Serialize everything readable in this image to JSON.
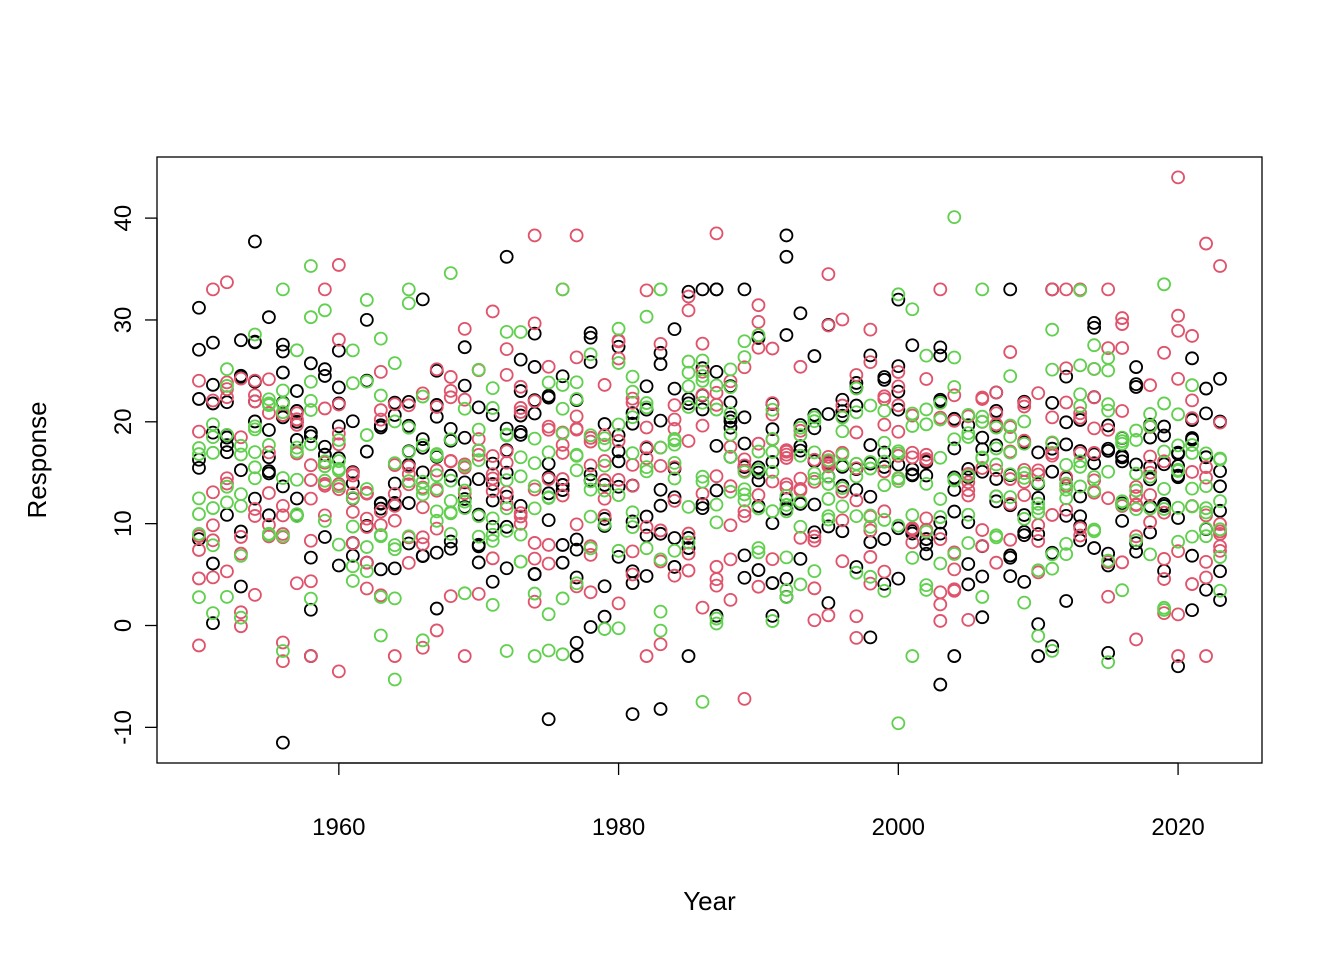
{
  "chart_data": {
    "type": "scatter",
    "title": "",
    "xlabel": "Year",
    "ylabel": "Response",
    "xlim": [
      1947,
      2026
    ],
    "ylim": [
      -13.5,
      46
    ],
    "x_ticks": [
      1960,
      1980,
      2000,
      2020
    ],
    "x_tick_labels": [
      "1960",
      "1980",
      "2000",
      "2020"
    ],
    "y_ticks": [
      -10,
      0,
      10,
      20,
      30,
      40
    ],
    "y_tick_labels": [
      "-10",
      "0",
      "10",
      "20",
      "30",
      "40"
    ],
    "grid": false,
    "legend": "none",
    "marker": "open-circle",
    "x_range": [
      1950,
      2023
    ],
    "points_per_year_per_series": 6,
    "series": [
      {
        "color": "#000000",
        "notable_points": [
          [
            1956,
            -11.5
          ],
          [
            1954,
            37.7
          ],
          [
            1972,
            36.2
          ],
          [
            1992,
            38.3
          ],
          [
            1992,
            36.2
          ],
          [
            1975,
            -9.2
          ],
          [
            2003,
            -5.8
          ],
          [
            1983,
            -8.2
          ],
          [
            1981,
            -8.7
          ],
          [
            2020,
            -4.0
          ],
          [
            2000,
            32.0
          ],
          [
            2023,
            2.5
          ]
        ]
      },
      {
        "color": "#DF536B",
        "notable_points": [
          [
            2020,
            44.0
          ],
          [
            1974,
            38.3
          ],
          [
            1977,
            38.3
          ],
          [
            1987,
            38.5
          ],
          [
            2022,
            37.5
          ],
          [
            2023,
            35.3
          ],
          [
            1960,
            35.4
          ],
          [
            1989,
            -7.2
          ],
          [
            1956,
            -3.5
          ],
          [
            1960,
            -4.5
          ],
          [
            1952,
            33.7
          ],
          [
            1995,
            34.5
          ]
        ]
      },
      {
        "color": "#61D04F",
        "notable_points": [
          [
            2000,
            -9.6
          ],
          [
            2004,
            40.1
          ],
          [
            1986,
            -7.5
          ],
          [
            1964,
            -5.3
          ],
          [
            1968,
            34.6
          ],
          [
            1958,
            35.3
          ],
          [
            2015,
            -3.6
          ],
          [
            2019,
            33.5
          ],
          [
            1956,
            -2.5
          ],
          [
            2013,
            32.9
          ],
          [
            1972,
            -2.5
          ],
          [
            2002,
            26.5
          ]
        ]
      }
    ]
  }
}
